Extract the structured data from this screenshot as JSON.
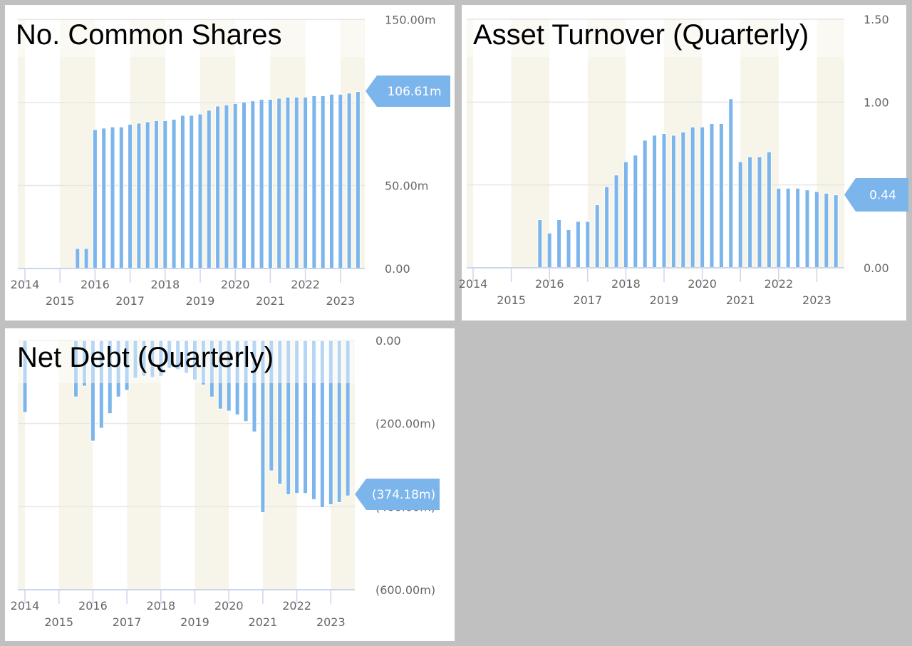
{
  "colors": {
    "bar": "#7cb5ec",
    "badge": "#7cb5ec",
    "band": "#f7f5ea",
    "grid": "#e6e6e6",
    "axis": "#ccd6eb",
    "background": "#c0c0c0"
  },
  "chart_data": [
    {
      "type": "bar",
      "title": "No. Common Shares",
      "x_tick_labels": [
        "2014",
        "2015",
        "2016",
        "2017",
        "2018",
        "2019",
        "2020",
        "2021",
        "2022",
        "2023"
      ],
      "y_tick_labels": [
        "0.00",
        "50.00m",
        "100.00m",
        "150.00m"
      ],
      "y_ticks": [
        0,
        50,
        100,
        150
      ],
      "ylim": [
        0,
        150
      ],
      "y_unit": "millions",
      "grid": true,
      "shaded_bands": "alternate years",
      "last_value_label": "106.61m",
      "x": [
        "2015-Q3",
        "2015-Q4",
        "2016-Q1",
        "2016-Q2",
        "2016-Q3",
        "2016-Q4",
        "2017-Q1",
        "2017-Q2",
        "2017-Q3",
        "2017-Q4",
        "2018-Q1",
        "2018-Q2",
        "2018-Q3",
        "2018-Q4",
        "2019-Q1",
        "2019-Q2",
        "2019-Q3",
        "2019-Q4",
        "2020-Q1",
        "2020-Q2",
        "2020-Q3",
        "2020-Q4",
        "2021-Q1",
        "2021-Q2",
        "2021-Q3",
        "2021-Q4",
        "2022-Q1",
        "2022-Q2",
        "2022-Q3",
        "2022-Q4",
        "2023-Q1",
        "2023-Q2",
        "2023-Q3"
      ],
      "values": [
        12.1,
        12.1,
        83.7,
        84.6,
        85.3,
        85.3,
        86.9,
        87.6,
        88.4,
        89.1,
        89.1,
        89.9,
        92.3,
        92.3,
        93.1,
        95.4,
        97.9,
        98.6,
        99.4,
        100.3,
        101.0,
        101.9,
        101.9,
        102.6,
        103.3,
        103.3,
        103.3,
        104.1,
        104.1,
        105.0,
        105.0,
        105.7,
        106.61
      ]
    },
    {
      "type": "bar",
      "title": "Asset Turnover (Quarterly)",
      "x_tick_labels": [
        "2014",
        "2015",
        "2016",
        "2017",
        "2018",
        "2019",
        "2020",
        "2021",
        "2022",
        "2023"
      ],
      "y_tick_labels": [
        "0.00",
        "0.50",
        "1.00",
        "1.50"
      ],
      "y_ticks": [
        0,
        0.5,
        1.0,
        1.5
      ],
      "ylim": [
        0,
        1.5
      ],
      "grid": true,
      "shaded_bands": "alternate years",
      "last_value_label": "0.44",
      "x": [
        "2015-Q4",
        "2016-Q1",
        "2016-Q2",
        "2016-Q3",
        "2016-Q4",
        "2017-Q1",
        "2017-Q2",
        "2017-Q3",
        "2017-Q4",
        "2018-Q1",
        "2018-Q2",
        "2018-Q3",
        "2018-Q4",
        "2019-Q1",
        "2019-Q2",
        "2019-Q3",
        "2019-Q4",
        "2020-Q1",
        "2020-Q2",
        "2020-Q3",
        "2020-Q4",
        "2021-Q1",
        "2021-Q2",
        "2021-Q3",
        "2021-Q4",
        "2022-Q1",
        "2022-Q2",
        "2022-Q3",
        "2022-Q4",
        "2023-Q1",
        "2023-Q2",
        "2023-Q3"
      ],
      "values": [
        0.29,
        0.21,
        0.29,
        0.23,
        0.28,
        0.28,
        0.38,
        0.49,
        0.56,
        0.64,
        0.68,
        0.77,
        0.8,
        0.81,
        0.8,
        0.82,
        0.85,
        0.85,
        0.87,
        0.87,
        1.02,
        0.64,
        0.67,
        0.67,
        0.7,
        0.48,
        0.48,
        0.48,
        0.47,
        0.46,
        0.45,
        0.44
      ]
    },
    {
      "type": "bar",
      "title": "Net Debt (Quarterly)",
      "x_tick_labels": [
        "2014",
        "2015",
        "2016",
        "2017",
        "2018",
        "2019",
        "2020",
        "2021",
        "2022",
        "2023"
      ],
      "y_tick_labels": [
        "0.00",
        "(200.00m)",
        "(400.00m)",
        "(600.00m)"
      ],
      "y_ticks": [
        0,
        -200,
        -400,
        -600
      ],
      "ylim": [
        -600,
        0
      ],
      "y_unit": "millions",
      "grid": true,
      "shaded_bands": "alternate years",
      "last_value_label": "(374.18m)",
      "x": [
        "2014-Q1",
        "2015-Q3",
        "2015-Q4",
        "2016-Q1",
        "2016-Q2",
        "2016-Q3",
        "2016-Q4",
        "2017-Q1",
        "2017-Q2",
        "2017-Q3",
        "2017-Q4",
        "2018-Q1",
        "2018-Q2",
        "2018-Q3",
        "2018-Q4",
        "2019-Q1",
        "2019-Q2",
        "2019-Q3",
        "2019-Q4",
        "2020-Q1",
        "2020-Q2",
        "2020-Q3",
        "2020-Q4",
        "2021-Q1",
        "2021-Q2",
        "2021-Q3",
        "2021-Q4",
        "2022-Q1",
        "2022-Q2",
        "2022-Q3",
        "2022-Q4",
        "2023-Q1",
        "2023-Q2",
        "2023-Q3"
      ],
      "values": [
        -173,
        -136,
        -110,
        -242,
        -211,
        -176,
        -136,
        -120,
        -91,
        -86,
        -89,
        -86,
        -67,
        -70,
        -79,
        -95,
        -107,
        -136,
        -165,
        -170,
        -179,
        -195,
        -220,
        -414,
        -314,
        -346,
        -371,
        -368,
        -368,
        -383,
        -402,
        -395,
        -390,
        -374.18
      ]
    }
  ]
}
